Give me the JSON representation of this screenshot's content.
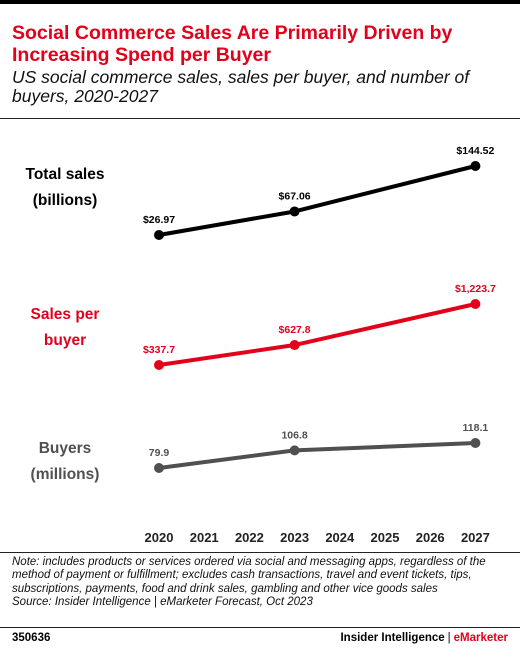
{
  "header": {
    "title": "Social Commerce Sales Are Primarily Driven by Increasing Spend per Buyer",
    "subtitle": "US social commerce sales, sales per buyer, and number of buyers, 2020-2027"
  },
  "footer": {
    "note": "Note: includes products or services ordered via social and messaging apps, regardless of the method of payment or fulfillment; excludes cash transactions, travel and event tickets, tips, subscriptions, payments, food and drink sales, gambling and other vice goods sales",
    "source": "Source: Insider Intelligence | eMarketer Forecast, Oct 2023",
    "chart_id": "350636",
    "brand_left": "Insider Intelligence",
    "brand_sep": "|",
    "brand_right": "eMarketer"
  },
  "colors": {
    "total_sales": "#000000",
    "sales_per_buyer": "#e3001b",
    "buyers": "#505050",
    "title": "#e3001b"
  },
  "chart_data": {
    "type": "line",
    "title": "Social Commerce Sales Are Primarily Driven by Increasing Spend per Buyer",
    "subtitle": "US social commerce sales, sales per buyer, and number of buyers, 2020-2027",
    "categories": [
      "2020",
      "2021",
      "2022",
      "2023",
      "2024",
      "2025",
      "2026",
      "2027"
    ],
    "grid": false,
    "series": [
      {
        "name": "Total sales (billions)",
        "label_lines": [
          "Total sales",
          "(billions)"
        ],
        "color": "#000000",
        "points": [
          {
            "x": "2020",
            "y": 26.97,
            "label": "$26.97"
          },
          {
            "x": "2023",
            "y": 67.06,
            "label": "$67.06"
          },
          {
            "x": "2027",
            "y": 144.52,
            "label": "$144.52"
          }
        ]
      },
      {
        "name": "Sales per buyer",
        "label_lines": [
          "Sales per",
          "buyer"
        ],
        "color": "#e3001b",
        "points": [
          {
            "x": "2020",
            "y": 337.7,
            "label": "$337.7"
          },
          {
            "x": "2023",
            "y": 627.8,
            "label": "$627.8"
          },
          {
            "x": "2027",
            "y": 1223.7,
            "label": "$1,223.7"
          }
        ]
      },
      {
        "name": "Buyers (millions)",
        "label_lines": [
          "Buyers",
          "(millions)"
        ],
        "color": "#505050",
        "points": [
          {
            "x": "2020",
            "y": 79.9,
            "label": "79.9"
          },
          {
            "x": "2023",
            "y": 106.8,
            "label": "106.8"
          },
          {
            "x": "2027",
            "y": 118.1,
            "label": "118.1"
          }
        ]
      }
    ]
  }
}
